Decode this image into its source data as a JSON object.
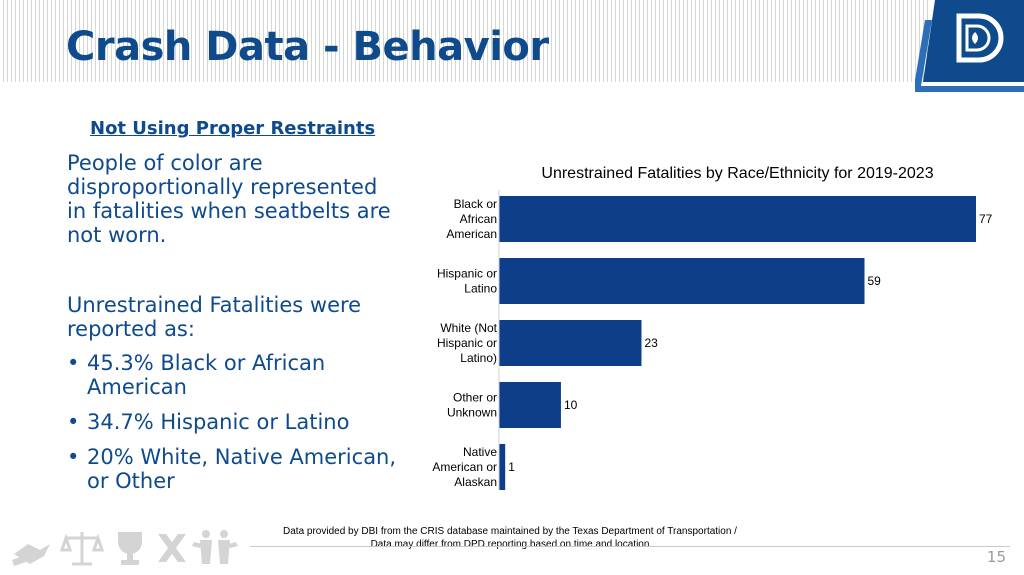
{
  "slide": {
    "title": "Crash Data - Behavior",
    "subheading": "Not Using Proper Restraints",
    "paragraph1": "People of color are disproportionally represented in fatalities when seatbelts are not worn.",
    "paragraph2": "Unrestrained Fatalities were reported as:",
    "bullets": [
      "45.3% Black or African American",
      "34.7% Hispanic or Latino",
      "20% White, Native American, or Other"
    ],
    "footnote_line1": "Data provided by DBI from the CRIS database maintained by the Texas Department of Transportation /",
    "footnote_line2": "Data may differ from DPD reporting based on time and location",
    "page_number": "15",
    "colors": {
      "brand": "#0e4a8c",
      "bar": "#0e3e8a"
    },
    "icons": [
      "handshake-icon",
      "scales-icon",
      "trophy-icon",
      "no-x-icon",
      "people-icon",
      "logo-d-icon"
    ]
  },
  "chart_data": {
    "type": "bar",
    "orientation": "horizontal",
    "title": "Unrestrained Fatalities by Race/Ethnicity for 2019-2023",
    "categories": [
      [
        "Black or",
        "African",
        "American"
      ],
      [
        "Hispanic or",
        "Latino"
      ],
      [
        "White (Not",
        "Hispanic or",
        "Latino)"
      ],
      [
        "Other or",
        "Unknown"
      ],
      [
        "Native",
        "American or",
        "Alaskan"
      ]
    ],
    "values": [
      77,
      59,
      23,
      10,
      1
    ],
    "xlim": [
      0,
      77
    ],
    "grid": false,
    "legend": "none"
  }
}
